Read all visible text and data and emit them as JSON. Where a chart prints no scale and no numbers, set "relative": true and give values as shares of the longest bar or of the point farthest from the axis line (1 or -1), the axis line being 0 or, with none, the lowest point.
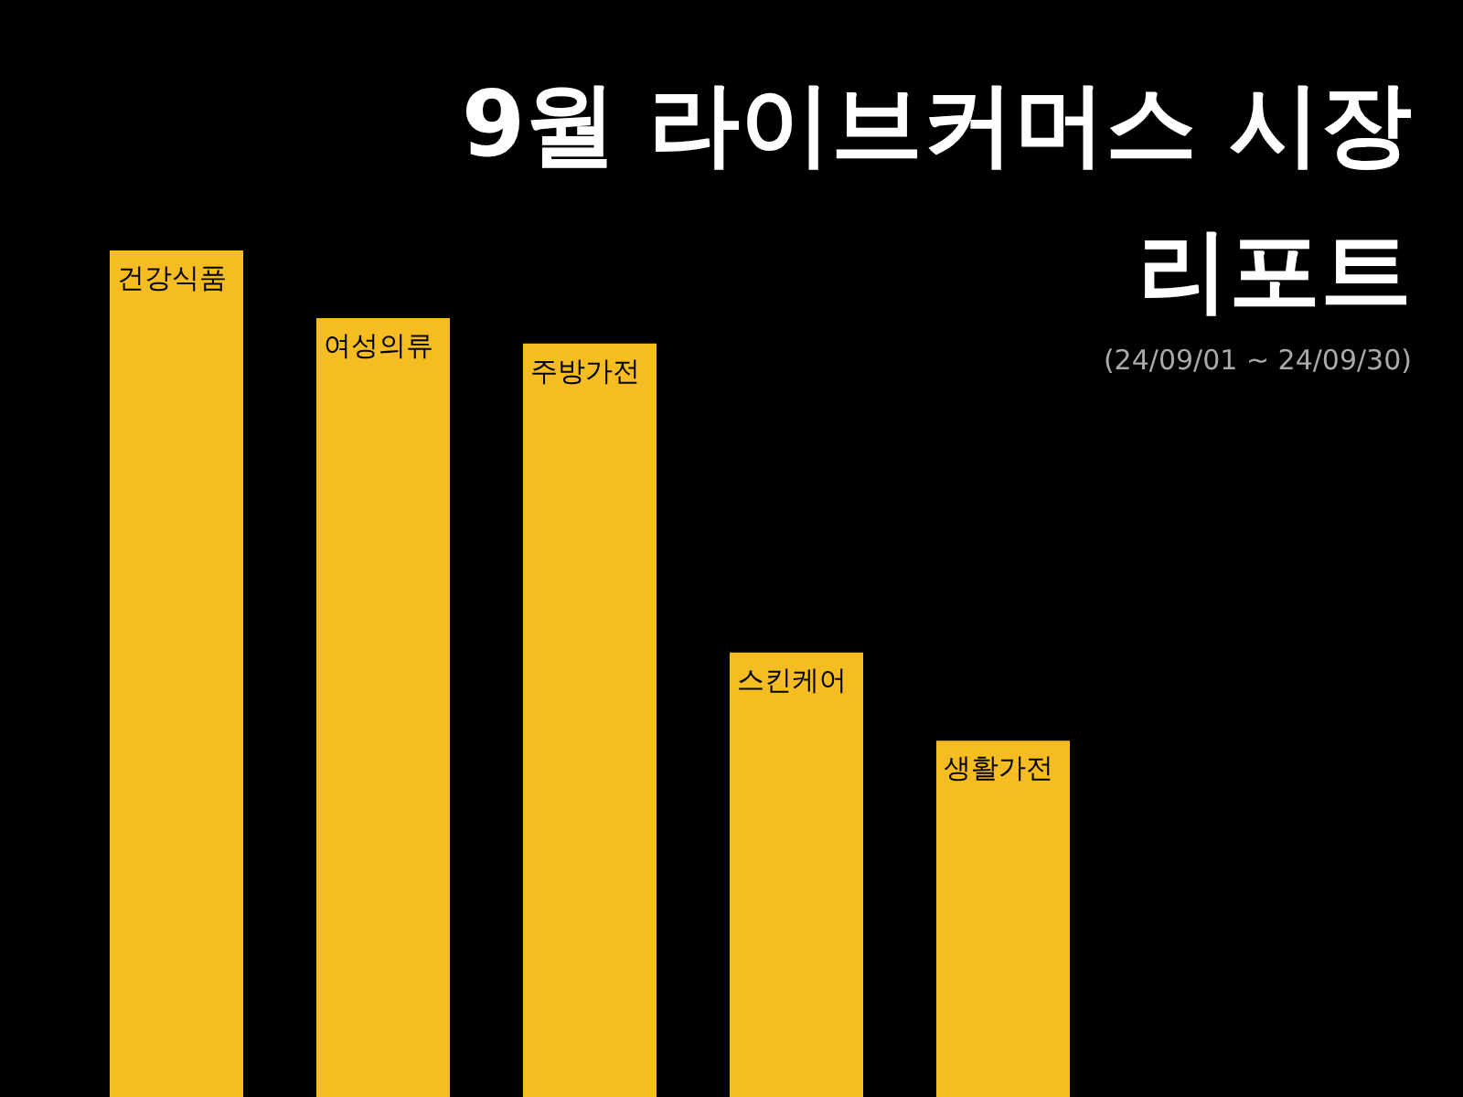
{
  "chart_data": {
    "type": "bar",
    "title": "9월 라이브커머스 시장 리포트",
    "subtitle": "(24/09/01 ~ 24/09/30)",
    "relative": true,
    "categories": [
      "건강식품",
      "여성의류",
      "주방가전",
      "스킨케어",
      "생활가전"
    ],
    "values": [
      1,
      0.92,
      0.89,
      0.525,
      0.421
    ],
    "color": "#f5bd22",
    "grid": false,
    "legend": false
  }
}
